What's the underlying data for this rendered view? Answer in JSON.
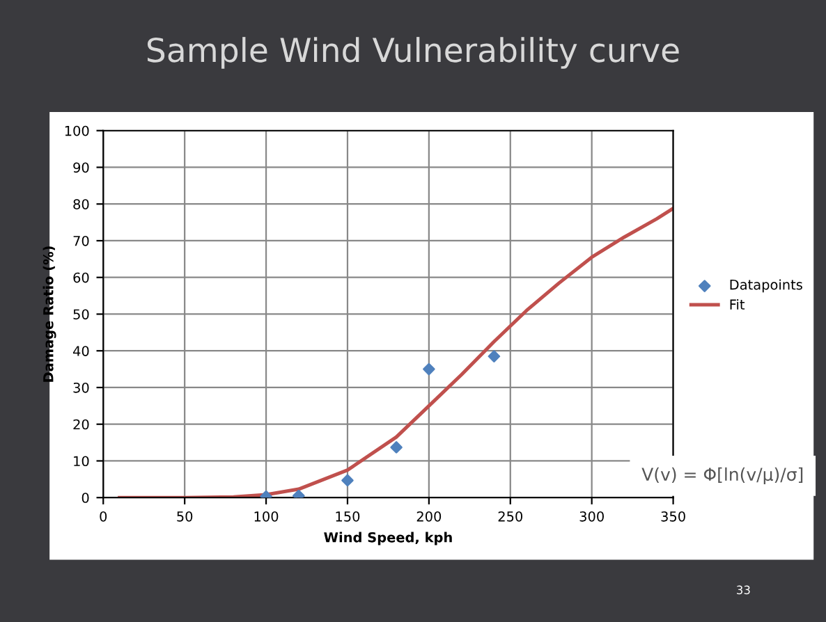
{
  "chart_data": {
    "type": "scatter",
    "title": "Sample Wind Vulnerability curve",
    "xlabel": "Wind Speed, kph",
    "ylabel": "Damage Ratio (%)",
    "xlim": [
      0,
      350
    ],
    "xticks": [
      0,
      50,
      100,
      150,
      200,
      250,
      300,
      350
    ],
    "ylim": [
      0,
      100
    ],
    "yticks": [
      0,
      10,
      20,
      30,
      40,
      50,
      60,
      70,
      80,
      90,
      100
    ],
    "grid": true,
    "legend": "right",
    "series": [
      {
        "name": "Datapoints",
        "marker": "diamond",
        "color": "#4f81bd",
        "x": [
          100,
          120,
          150,
          180,
          200,
          240
        ],
        "values": [
          0.3,
          0.5,
          4.7,
          13.7,
          35,
          38.5
        ]
      },
      {
        "name": "Fit",
        "type": "line",
        "marker": "none",
        "line_style": "solid",
        "color": "#c0504d",
        "x": [
          10,
          50,
          80,
          100,
          120,
          150,
          180,
          200,
          220,
          240,
          260,
          280,
          300,
          320,
          340,
          350
        ],
        "values": [
          0,
          0,
          0.2,
          0.8,
          2.3,
          7.5,
          16.5,
          25,
          33.5,
          42.5,
          51,
          58.5,
          65.5,
          71,
          76,
          78.8
        ]
      }
    ],
    "annotations": [
      "V(v) = Φ[ln(v/μ)/σ]",
      "33"
    ]
  }
}
